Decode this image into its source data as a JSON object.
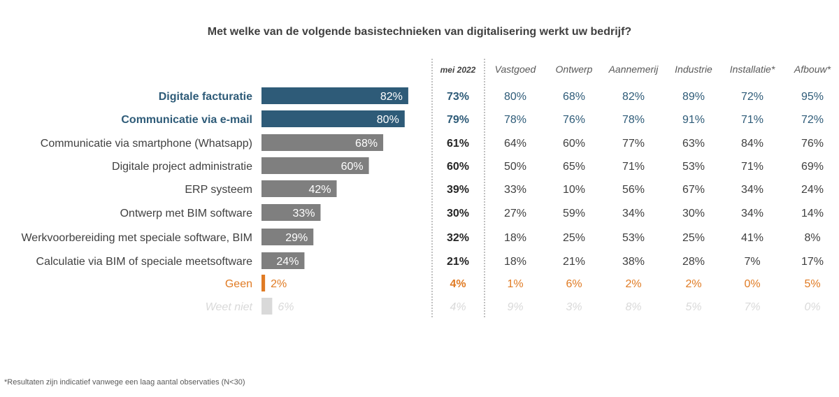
{
  "title": "Met welke van de volgende basistechnieken van digitalisering werkt uw bedrijf?",
  "footnote": "*Resultaten zijn indicatief vanwege een laag aantal observaties (N<30)",
  "colors": {
    "highlight": "#2e5b78",
    "default": "#7f7f7f",
    "geen": "#e07b24",
    "weet_niet": "#d9d9d9",
    "table_text": "#404040"
  },
  "chart_data": {
    "type": "bar",
    "orientation": "horizontal",
    "unit": "%",
    "categories": [
      "Digitale facturatie",
      "Communicatie via e-mail",
      "Communicatie via smartphone (Whatsapp)",
      "Digitale project administratie",
      "ERP systeem",
      "Ontwerp met BIM software",
      "Werkvoorbereiding met speciale software, BIM",
      "Calculatie via BIM of speciale meetsoftware",
      "Geen",
      "Weet niet"
    ],
    "values": [
      82,
      80,
      68,
      60,
      42,
      33,
      29,
      24,
      2,
      6
    ],
    "row_styles": [
      "highlight",
      "highlight",
      "default",
      "default",
      "default",
      "default",
      "default",
      "default",
      "geen",
      "weet_niet"
    ],
    "table": {
      "columns": [
        "mei 2022",
        "Vastgoed",
        "Ontwerp",
        "Aannemerij",
        "Industrie",
        "Installatie*",
        "Afbouw*"
      ],
      "rows": [
        [
          "73%",
          "80%",
          "68%",
          "82%",
          "89%",
          "72%",
          "95%"
        ],
        [
          "79%",
          "78%",
          "76%",
          "78%",
          "91%",
          "71%",
          "72%"
        ],
        [
          "61%",
          "64%",
          "60%",
          "77%",
          "63%",
          "84%",
          "76%"
        ],
        [
          "60%",
          "50%",
          "65%",
          "71%",
          "53%",
          "71%",
          "69%"
        ],
        [
          "39%",
          "33%",
          "10%",
          "56%",
          "67%",
          "34%",
          "24%"
        ],
        [
          "30%",
          "27%",
          "59%",
          "34%",
          "30%",
          "34%",
          "14%"
        ],
        [
          "32%",
          "18%",
          "25%",
          "53%",
          "25%",
          "41%",
          "8%"
        ],
        [
          "21%",
          "18%",
          "21%",
          "38%",
          "28%",
          "7%",
          "17%"
        ],
        [
          "4%",
          "1%",
          "6%",
          "2%",
          "2%",
          "0%",
          "5%"
        ],
        [
          "4%",
          "9%",
          "3%",
          "8%",
          "5%",
          "7%",
          "0%"
        ]
      ]
    }
  }
}
